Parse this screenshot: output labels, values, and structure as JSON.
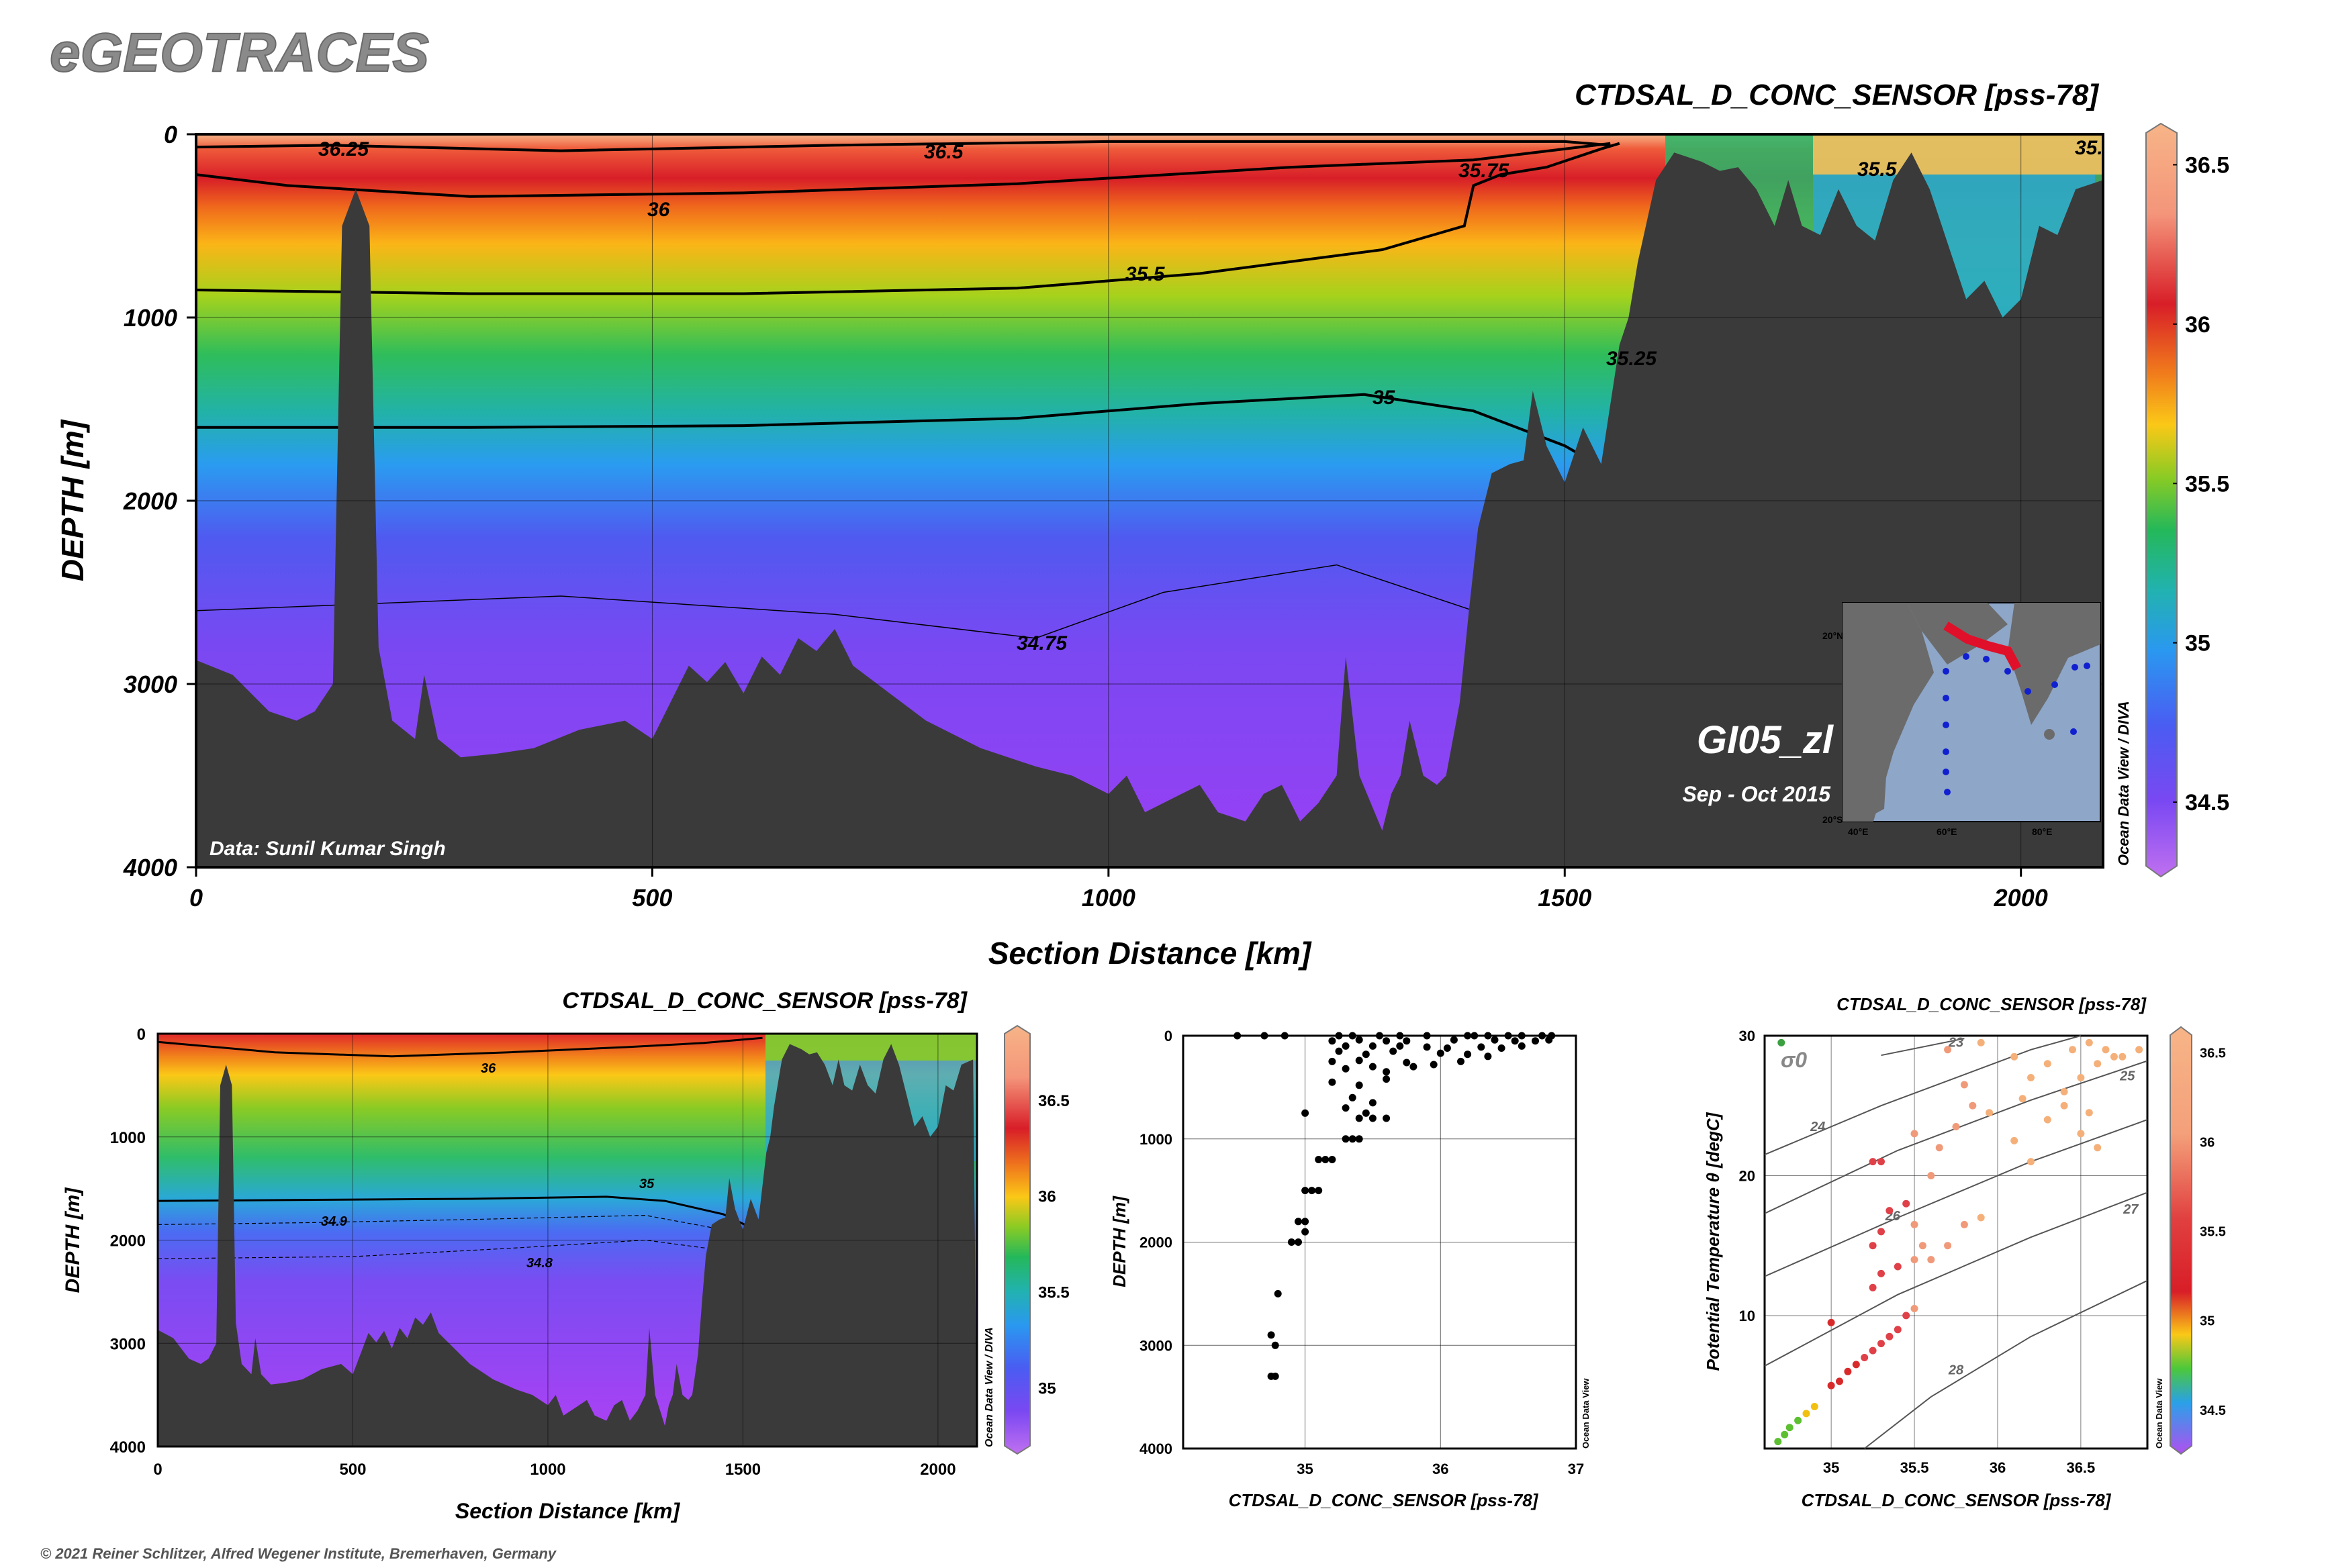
{
  "header": {
    "brand": "eGEOTRACES",
    "copyright": "© 2021 Reiner Schlitzer, Alfred Wegener Institute, Bremerhaven, Germany"
  },
  "colors": {
    "seafloor": "#3a3a3a",
    "brand_text": "#8a8a8a",
    "colorbar_high": "#f5b07a",
    "colorbar_low": "#c070f0"
  },
  "main_section": {
    "title": "CTDSAL_D_CONC_SENSOR [pss-78]",
    "xlabel": "Section Distance [km]",
    "ylabel": "DEPTH [m]",
    "data_credit": "Data: Sunil Kumar Singh",
    "cruise": "GI05_zl",
    "period": "Sep - Oct 2015",
    "watermark": "Ocean Data View / DIVA",
    "map_lat_labels": [
      "20°N",
      "20°S"
    ],
    "map_lon_labels": [
      "40°E",
      "60°E",
      "80°E"
    ]
  },
  "section_small": {
    "title": "CTDSAL_D_CONC_SENSOR [pss-78]",
    "xlabel": "Section Distance [km]",
    "ylabel": "DEPTH [m]",
    "watermark": "Ocean Data View / DIVA"
  },
  "profile_plot": {
    "xlabel": "CTDSAL_D_CONC_SENSOR [pss-78]",
    "ylabel": "DEPTH [m]",
    "watermark": "Ocean Data View"
  },
  "ts_plot": {
    "title": "CTDSAL_D_CONC_SENSOR [pss-78]",
    "xlabel": "CTDSAL_D_CONC_SENSOR [pss-78]",
    "ylabel": "Potential Temperature θ [degC]",
    "sigma_label": "σ0",
    "watermark": "Ocean Data View"
  },
  "chart_data": [
    {
      "type": "heatmap",
      "name": "main_section",
      "x_ticks": [
        0,
        500,
        1000,
        1500,
        2000
      ],
      "y_ticks": [
        0,
        1000,
        2000,
        3000,
        4000
      ],
      "xlim": [
        0,
        2090
      ],
      "ylim": [
        4000,
        0
      ],
      "colorbar_ticks": [
        36.5,
        36,
        35.5,
        35,
        34.5
      ],
      "colorbar_range": [
        34.3,
        36.6
      ],
      "contour_labels": [
        "36.25",
        "36.5",
        "36",
        "35.75",
        "35.5",
        "35.5",
        "35.",
        "35.25",
        "35",
        "34.75"
      ],
      "bathymetry": [
        [
          0,
          2870
        ],
        [
          40,
          2950
        ],
        [
          80,
          3150
        ],
        [
          110,
          3200
        ],
        [
          130,
          3150
        ],
        [
          150,
          3000
        ],
        [
          160,
          500
        ],
        [
          175,
          300
        ],
        [
          190,
          500
        ],
        [
          200,
          2800
        ],
        [
          215,
          3200
        ],
        [
          240,
          3300
        ],
        [
          250,
          2950
        ],
        [
          265,
          3300
        ],
        [
          290,
          3400
        ],
        [
          330,
          3380
        ],
        [
          370,
          3350
        ],
        [
          420,
          3250
        ],
        [
          470,
          3200
        ],
        [
          500,
          3300
        ],
        [
          520,
          3100
        ],
        [
          540,
          2900
        ],
        [
          560,
          2990
        ],
        [
          580,
          2880
        ],
        [
          600,
          3050
        ],
        [
          620,
          2850
        ],
        [
          640,
          2950
        ],
        [
          660,
          2750
        ],
        [
          680,
          2820
        ],
        [
          700,
          2700
        ],
        [
          720,
          2900
        ],
        [
          760,
          3050
        ],
        [
          800,
          3200
        ],
        [
          860,
          3350
        ],
        [
          920,
          3450
        ],
        [
          960,
          3500
        ],
        [
          1000,
          3600
        ],
        [
          1020,
          3500
        ],
        [
          1040,
          3700
        ],
        [
          1080,
          3600
        ],
        [
          1100,
          3550
        ],
        [
          1120,
          3700
        ],
        [
          1150,
          3750
        ],
        [
          1170,
          3600
        ],
        [
          1190,
          3550
        ],
        [
          1210,
          3750
        ],
        [
          1230,
          3650
        ],
        [
          1250,
          3500
        ],
        [
          1260,
          2850
        ],
        [
          1275,
          3500
        ],
        [
          1300,
          3800
        ],
        [
          1310,
          3600
        ],
        [
          1320,
          3500
        ],
        [
          1330,
          3200
        ],
        [
          1345,
          3500
        ],
        [
          1360,
          3550
        ],
        [
          1370,
          3500
        ],
        [
          1385,
          3100
        ],
        [
          1395,
          2600
        ],
        [
          1405,
          2150
        ],
        [
          1420,
          1850
        ],
        [
          1440,
          1800
        ],
        [
          1455,
          1780
        ],
        [
          1465,
          1400
        ],
        [
          1480,
          1700
        ],
        [
          1500,
          1900
        ],
        [
          1520,
          1600
        ],
        [
          1540,
          1800
        ],
        [
          1560,
          1150
        ],
        [
          1570,
          1000
        ],
        [
          1580,
          700
        ],
        [
          1600,
          250
        ],
        [
          1620,
          100
        ],
        [
          1650,
          150
        ],
        [
          1670,
          200
        ],
        [
          1690,
          180
        ],
        [
          1710,
          300
        ],
        [
          1730,
          500
        ],
        [
          1745,
          250
        ],
        [
          1760,
          500
        ],
        [
          1780,
          550
        ],
        [
          1800,
          300
        ],
        [
          1820,
          500
        ],
        [
          1840,
          580
        ],
        [
          1860,
          250
        ],
        [
          1880,
          100
        ],
        [
          1900,
          300
        ],
        [
          1920,
          600
        ],
        [
          1940,
          900
        ],
        [
          1960,
          800
        ],
        [
          1980,
          1000
        ],
        [
          2000,
          900
        ],
        [
          2020,
          500
        ],
        [
          2040,
          550
        ],
        [
          2060,
          300
        ],
        [
          2090,
          250
        ]
      ],
      "contours": [
        {
          "level": 36.5,
          "points": [
            [
              0,
              70
            ],
            [
              150,
              60
            ],
            [
              400,
              90
            ],
            [
              700,
              60
            ],
            [
              1000,
              40
            ],
            [
              1500,
              40
            ],
            [
              1550,
              60
            ]
          ]
        },
        {
          "level": 36,
          "points": [
            [
              0,
              220
            ],
            [
              100,
              280
            ],
            [
              300,
              340
            ],
            [
              600,
              320
            ],
            [
              900,
              270
            ],
            [
              1200,
              180
            ],
            [
              1400,
              140
            ],
            [
              1550,
              50
            ]
          ]
        },
        {
          "level": 35.5,
          "points": [
            [
              0,
              850
            ],
            [
              300,
              870
            ],
            [
              600,
              870
            ],
            [
              900,
              840
            ],
            [
              1100,
              760
            ],
            [
              1300,
              630
            ],
            [
              1390,
              500
            ],
            [
              1400,
              280
            ],
            [
              1430,
              220
            ],
            [
              1480,
              180
            ],
            [
              1540,
              80
            ],
            [
              1560,
              50
            ]
          ]
        },
        {
          "level": 35,
          "points": [
            [
              0,
              1600
            ],
            [
              300,
              1600
            ],
            [
              600,
              1590
            ],
            [
              900,
              1550
            ],
            [
              1100,
              1470
            ],
            [
              1280,
              1420
            ],
            [
              1400,
              1510
            ],
            [
              1500,
              1700
            ],
            [
              1570,
              1900
            ]
          ]
        },
        {
          "level": 34.75,
          "points": [
            [
              0,
              2600
            ],
            [
              400,
              2520
            ],
            [
              700,
              2620
            ],
            [
              920,
              2750
            ],
            [
              1060,
              2500
            ],
            [
              1250,
              2350
            ],
            [
              1400,
              2600
            ]
          ]
        }
      ]
    },
    {
      "type": "heatmap",
      "name": "section_small",
      "x_ticks": [
        0,
        500,
        1000,
        1500,
        2000
      ],
      "y_ticks": [
        0,
        1000,
        2000,
        3000,
        4000
      ],
      "colorbar_ticks": [
        36.5,
        36,
        35.5,
        35
      ],
      "contour_labels": [
        "36",
        "35",
        "34.9",
        "34.8"
      ]
    },
    {
      "type": "scatter",
      "name": "salinity_profile",
      "x_ticks": [
        35,
        36,
        37
      ],
      "y_ticks": [
        0,
        1000,
        2000,
        3000,
        4000
      ],
      "xlim": [
        34.1,
        37.0
      ],
      "ylim": [
        4000,
        0
      ],
      "points": [
        [
          34.5,
          0
        ],
        [
          34.7,
          0
        ],
        [
          34.85,
          0
        ],
        [
          35.25,
          0
        ],
        [
          35.35,
          0
        ],
        [
          35.55,
          0
        ],
        [
          35.7,
          0
        ],
        [
          35.9,
          0
        ],
        [
          36.2,
          0
        ],
        [
          36.25,
          0
        ],
        [
          36.35,
          0
        ],
        [
          36.5,
          0
        ],
        [
          36.6,
          0
        ],
        [
          36.75,
          0
        ],
        [
          36.82,
          0
        ],
        [
          35.2,
          50
        ],
        [
          35.4,
          40
        ],
        [
          35.6,
          50
        ],
        [
          35.75,
          50
        ],
        [
          36.1,
          40
        ],
        [
          36.4,
          40
        ],
        [
          36.55,
          50
        ],
        [
          36.7,
          50
        ],
        [
          36.8,
          40
        ],
        [
          35.3,
          100
        ],
        [
          35.5,
          100
        ],
        [
          35.7,
          100
        ],
        [
          35.9,
          110
        ],
        [
          36.05,
          120
        ],
        [
          36.3,
          110
        ],
        [
          36.45,
          120
        ],
        [
          36.6,
          100
        ],
        [
          35.25,
          150
        ],
        [
          35.45,
          180
        ],
        [
          35.65,
          150
        ],
        [
          36.0,
          170
        ],
        [
          36.2,
          180
        ],
        [
          36.35,
          200
        ],
        [
          35.2,
          250
        ],
        [
          35.4,
          240
        ],
        [
          35.5,
          300
        ],
        [
          35.75,
          260
        ],
        [
          35.95,
          280
        ],
        [
          36.15,
          250
        ],
        [
          35.3,
          320
        ],
        [
          35.6,
          350
        ],
        [
          35.8,
          300
        ],
        [
          35.2,
          450
        ],
        [
          35.4,
          480
        ],
        [
          35.6,
          420
        ],
        [
          35.35,
          600
        ],
        [
          35.5,
          650
        ],
        [
          35.3,
          700
        ],
        [
          35.45,
          750
        ],
        [
          35.0,
          750
        ],
        [
          35.4,
          800
        ],
        [
          35.5,
          800
        ],
        [
          35.6,
          800
        ],
        [
          35.3,
          1000
        ],
        [
          35.35,
          1000
        ],
        [
          35.4,
          1000
        ],
        [
          35.1,
          1200
        ],
        [
          35.15,
          1200
        ],
        [
          35.2,
          1200
        ],
        [
          35.0,
          1500
        ],
        [
          35.05,
          1500
        ],
        [
          35.1,
          1500
        ],
        [
          34.95,
          1800
        ],
        [
          35.0,
          1800
        ],
        [
          35.0,
          1900
        ],
        [
          34.9,
          2000
        ],
        [
          34.95,
          2000
        ],
        [
          34.8,
          2500
        ],
        [
          34.75,
          2900
        ],
        [
          34.78,
          3000
        ],
        [
          34.75,
          3300
        ],
        [
          34.78,
          3300
        ]
      ]
    },
    {
      "type": "scatter",
      "name": "ts_diagram",
      "x_ticks": [
        35,
        35.5,
        36,
        36.5
      ],
      "y_ticks": [
        10,
        20,
        30
      ],
      "xlim": [
        34.6,
        36.9
      ],
      "ylim": [
        0.5,
        30
      ],
      "colorbar_ticks": [
        36.5,
        36,
        35.5,
        35,
        34.5
      ],
      "isopycnal_labels": [
        "23",
        "24",
        "25",
        "26",
        "27",
        "28"
      ],
      "isopycnals": [
        23,
        24,
        25,
        26,
        27,
        28
      ],
      "points": [
        [
          34.7,
          29.5
        ],
        [
          34.68,
          1.0
        ],
        [
          34.72,
          1.5
        ],
        [
          34.75,
          2.0
        ],
        [
          34.8,
          2.5
        ],
        [
          34.85,
          3.0
        ],
        [
          34.9,
          3.5
        ],
        [
          35.0,
          5.0
        ],
        [
          35.05,
          5.3
        ],
        [
          35.1,
          6.0
        ],
        [
          35.15,
          6.5
        ],
        [
          35.2,
          7.0
        ],
        [
          35.25,
          7.5
        ],
        [
          35.3,
          8.0
        ],
        [
          35.35,
          8.5
        ],
        [
          35.4,
          9.0
        ],
        [
          35.45,
          10.0
        ],
        [
          35.5,
          10.5
        ],
        [
          35.0,
          9.5
        ],
        [
          35.25,
          12.0
        ],
        [
          35.3,
          13.0
        ],
        [
          35.4,
          13.5
        ],
        [
          35.5,
          14.0
        ],
        [
          35.25,
          15.0
        ],
        [
          35.3,
          16.0
        ],
        [
          35.35,
          17.5
        ],
        [
          35.45,
          18.0
        ],
        [
          35.5,
          16.5
        ],
        [
          35.55,
          15.0
        ],
        [
          35.6,
          14.0
        ],
        [
          35.7,
          15.0
        ],
        [
          35.8,
          16.5
        ],
        [
          35.9,
          17.0
        ],
        [
          35.25,
          21.0
        ],
        [
          35.3,
          21.0
        ],
        [
          35.5,
          23.0
        ],
        [
          35.6,
          20.0
        ],
        [
          35.65,
          22.0
        ],
        [
          35.75,
          23.5
        ],
        [
          35.85,
          25.0
        ],
        [
          35.95,
          24.5
        ],
        [
          36.1,
          22.5
        ],
        [
          36.2,
          21.0
        ],
        [
          36.3,
          24.0
        ],
        [
          36.4,
          26.0
        ],
        [
          36.5,
          27.0
        ],
        [
          36.6,
          28.0
        ],
        [
          36.7,
          28.5
        ],
        [
          36.2,
          27.0
        ],
        [
          36.3,
          28.0
        ],
        [
          36.45,
          29.0
        ],
        [
          36.55,
          29.5
        ],
        [
          36.65,
          29.0
        ],
        [
          36.75,
          28.5
        ],
        [
          36.85,
          29.0
        ],
        [
          35.7,
          29.0
        ],
        [
          35.9,
          29.5
        ],
        [
          36.1,
          28.5
        ],
        [
          36.4,
          25.0
        ],
        [
          36.5,
          23.0
        ],
        [
          36.6,
          22.0
        ],
        [
          36.15,
          25.5
        ],
        [
          35.8,
          26.5
        ],
        [
          36.55,
          24.5
        ]
      ]
    }
  ]
}
